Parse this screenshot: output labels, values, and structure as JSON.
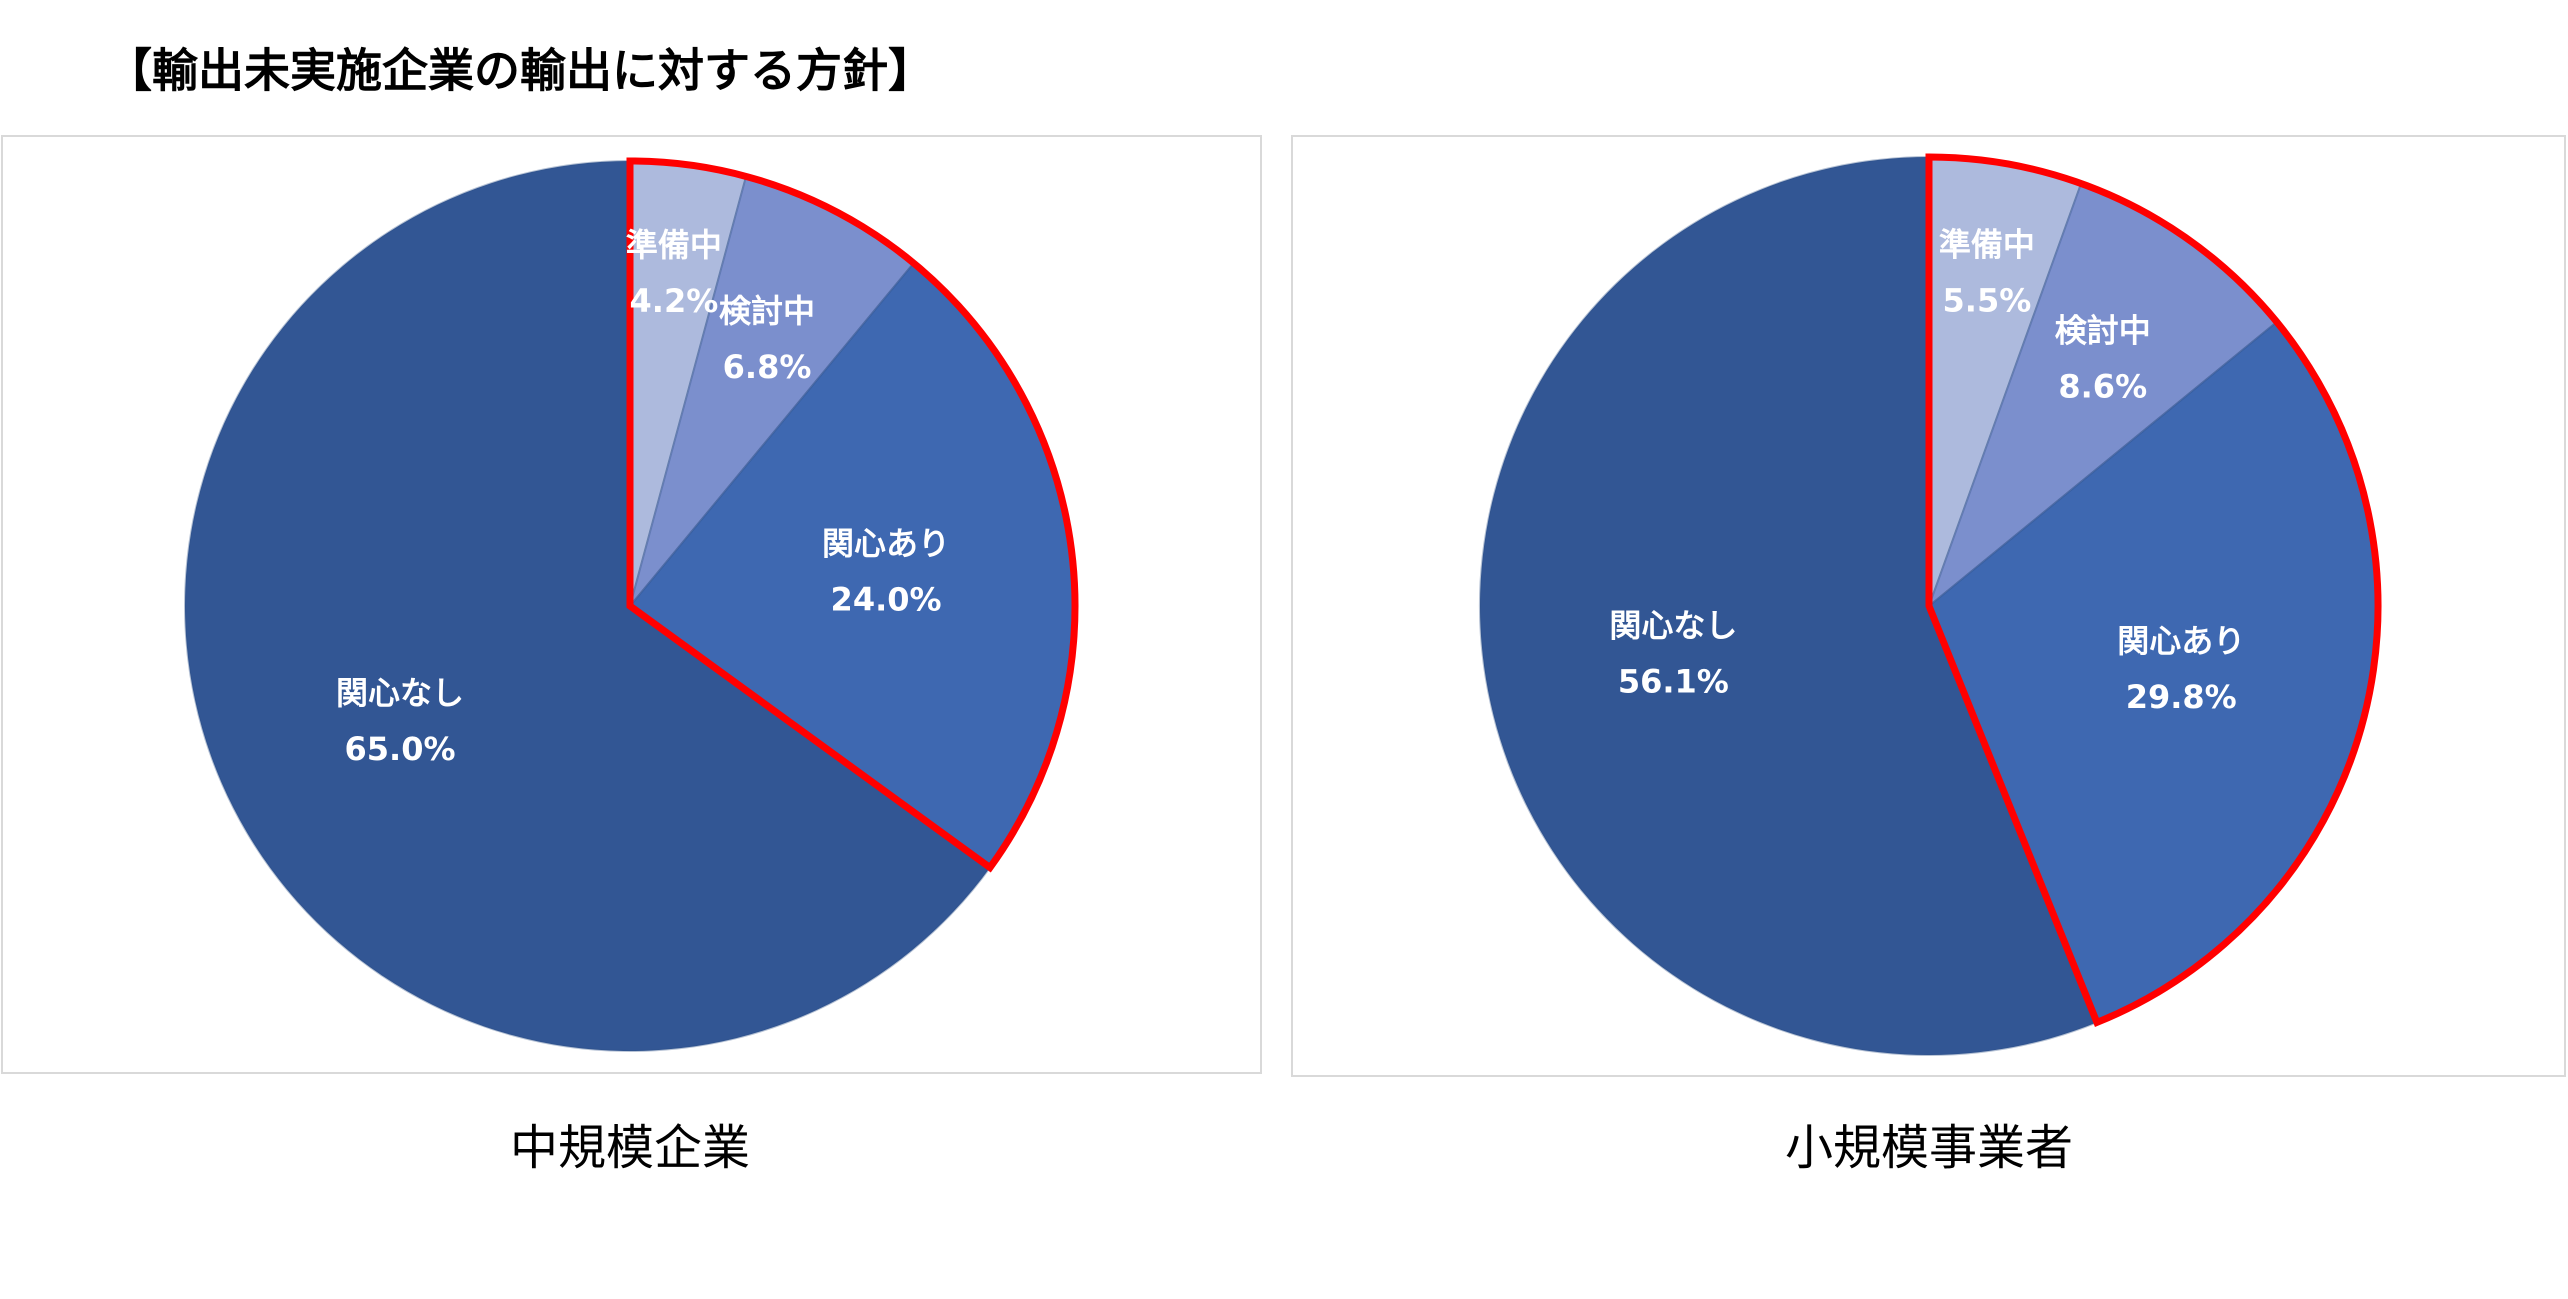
{
  "title": "【輸出未実施企業の輸出に対する方針】",
  "chart_data": [
    {
      "type": "pie",
      "title": "中規模企業",
      "categories": [
        "準備中",
        "検討中",
        "関心あり",
        "関心なし"
      ],
      "values": [
        4.2,
        6.8,
        24.0,
        65.0
      ],
      "value_labels": [
        "4.2%",
        "6.8%",
        "24.0%",
        "65.0%"
      ],
      "colors": [
        "#adbadd",
        "#7b8fcd",
        "#3e68b1",
        "#325694"
      ]
    },
    {
      "type": "pie",
      "title": "小規模事業者",
      "categories": [
        "準備中",
        "検討中",
        "関心あり",
        "関心なし"
      ],
      "values": [
        5.5,
        8.6,
        29.8,
        56.1
      ],
      "value_labels": [
        "5.5%",
        "8.6%",
        "29.8%",
        "56.1%"
      ],
      "colors": [
        "#adbadd",
        "#7b8fcd",
        "#3e68b1",
        "#325694"
      ]
    }
  ]
}
